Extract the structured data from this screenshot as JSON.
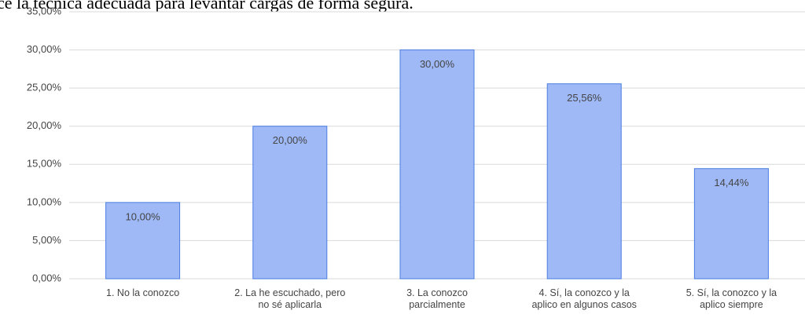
{
  "chart_data": {
    "type": "bar",
    "title": "ce la técnica adecuada para levantar cargas de forma segura.",
    "categories": [
      "1. No la conozco",
      "2. La he escuchado, pero no sé aplicarla",
      "3. La conozco parcialmente",
      "4. Sí, la conozco y la aplico en algunos casos",
      "5. Sí, la conozco y la aplico siempre"
    ],
    "values": [
      10,
      20,
      30,
      25.56,
      14.44
    ],
    "value_labels": [
      "10,00%",
      "20,00%",
      "30,00%",
      "25,56%",
      "14,44%"
    ],
    "color": "#9fb9f7",
    "ylim": [
      0,
      35
    ],
    "yticks": [
      {
        "value": 0,
        "label": "0,00%"
      },
      {
        "value": 5,
        "label": "5,00%"
      },
      {
        "value": 10,
        "label": "10,00%"
      },
      {
        "value": 15,
        "label": "15,00%"
      },
      {
        "value": 20,
        "label": "20,00%"
      },
      {
        "value": 25,
        "label": "25,00%"
      },
      {
        "value": 30,
        "label": "30,00%"
      },
      {
        "value": 35,
        "label": "35,00%"
      }
    ],
    "grid": true
  }
}
